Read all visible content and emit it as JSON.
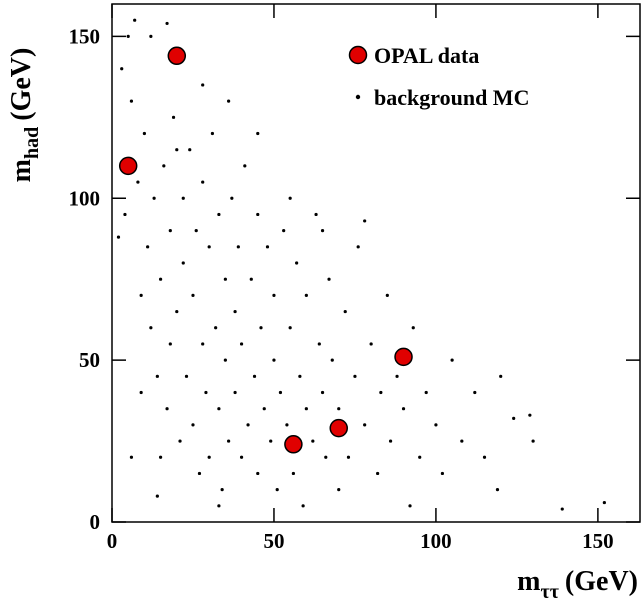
{
  "chart_data": {
    "type": "scatter",
    "x_label": {
      "text": "m",
      "subscript": "ττ",
      "unit": "(GeV)"
    },
    "y_label": {
      "text": "m",
      "subscript": "had",
      "unit": "(GeV)"
    },
    "xlim": [
      0,
      163
    ],
    "ylim": [
      0,
      160
    ],
    "xticks": [
      0,
      50,
      100,
      150
    ],
    "yticks": [
      0,
      50,
      100,
      150
    ],
    "legend": "top-right",
    "series": [
      {
        "name": "background MC",
        "color": "#000000",
        "x": [
          3,
          5,
          4,
          2,
          6,
          8,
          9,
          10,
          11,
          12,
          13,
          14,
          15,
          15,
          16,
          17,
          18,
          18,
          19,
          20,
          21,
          22,
          22,
          23,
          24,
          25,
          25,
          26,
          27,
          28,
          28,
          29,
          30,
          30,
          31,
          32,
          33,
          33,
          34,
          35,
          35,
          36,
          37,
          38,
          38,
          39,
          40,
          40,
          41,
          42,
          43,
          44,
          45,
          45,
          46,
          47,
          48,
          49,
          50,
          50,
          51,
          52,
          53,
          54,
          55,
          56,
          57,
          58,
          59,
          60,
          60,
          62,
          63,
          64,
          65,
          66,
          67,
          68,
          70,
          70,
          72,
          73,
          75,
          76,
          78,
          80,
          82,
          83,
          85,
          86,
          88,
          90,
          92,
          93,
          95,
          97,
          100,
          102,
          105,
          108,
          112,
          115,
          119,
          120,
          124,
          129,
          130,
          139,
          152,
          12,
          17,
          7,
          45,
          55,
          65,
          78,
          36,
          28,
          20,
          9,
          6,
          14,
          33
        ],
        "values": [
          140,
          150,
          95,
          88,
          130,
          105,
          70,
          120,
          85,
          60,
          100,
          45,
          75,
          20,
          110,
          35,
          90,
          55,
          125,
          65,
          25,
          100,
          80,
          45,
          115,
          30,
          70,
          90,
          15,
          55,
          105,
          40,
          85,
          20,
          120,
          60,
          95,
          35,
          10,
          75,
          50,
          25,
          100,
          65,
          40,
          85,
          20,
          55,
          110,
          30,
          75,
          45,
          95,
          15,
          60,
          35,
          85,
          25,
          70,
          50,
          10,
          40,
          90,
          30,
          60,
          15,
          80,
          45,
          5,
          35,
          70,
          25,
          95,
          55,
          40,
          20,
          75,
          50,
          10,
          35,
          65,
          20,
          45,
          85,
          30,
          55,
          15,
          40,
          70,
          25,
          45,
          35,
          5,
          60,
          20,
          40,
          30,
          15,
          50,
          25,
          40,
          20,
          10,
          45,
          32,
          33,
          25,
          4,
          6,
          150,
          154,
          155,
          120,
          100,
          90,
          93,
          130,
          135,
          115,
          40,
          20,
          8,
          5
        ]
      },
      {
        "name": "OPAL data",
        "color": "#e00000",
        "x": [
          5,
          20,
          56,
          70,
          90
        ],
        "values": [
          110,
          144,
          24,
          29,
          51
        ]
      }
    ]
  }
}
